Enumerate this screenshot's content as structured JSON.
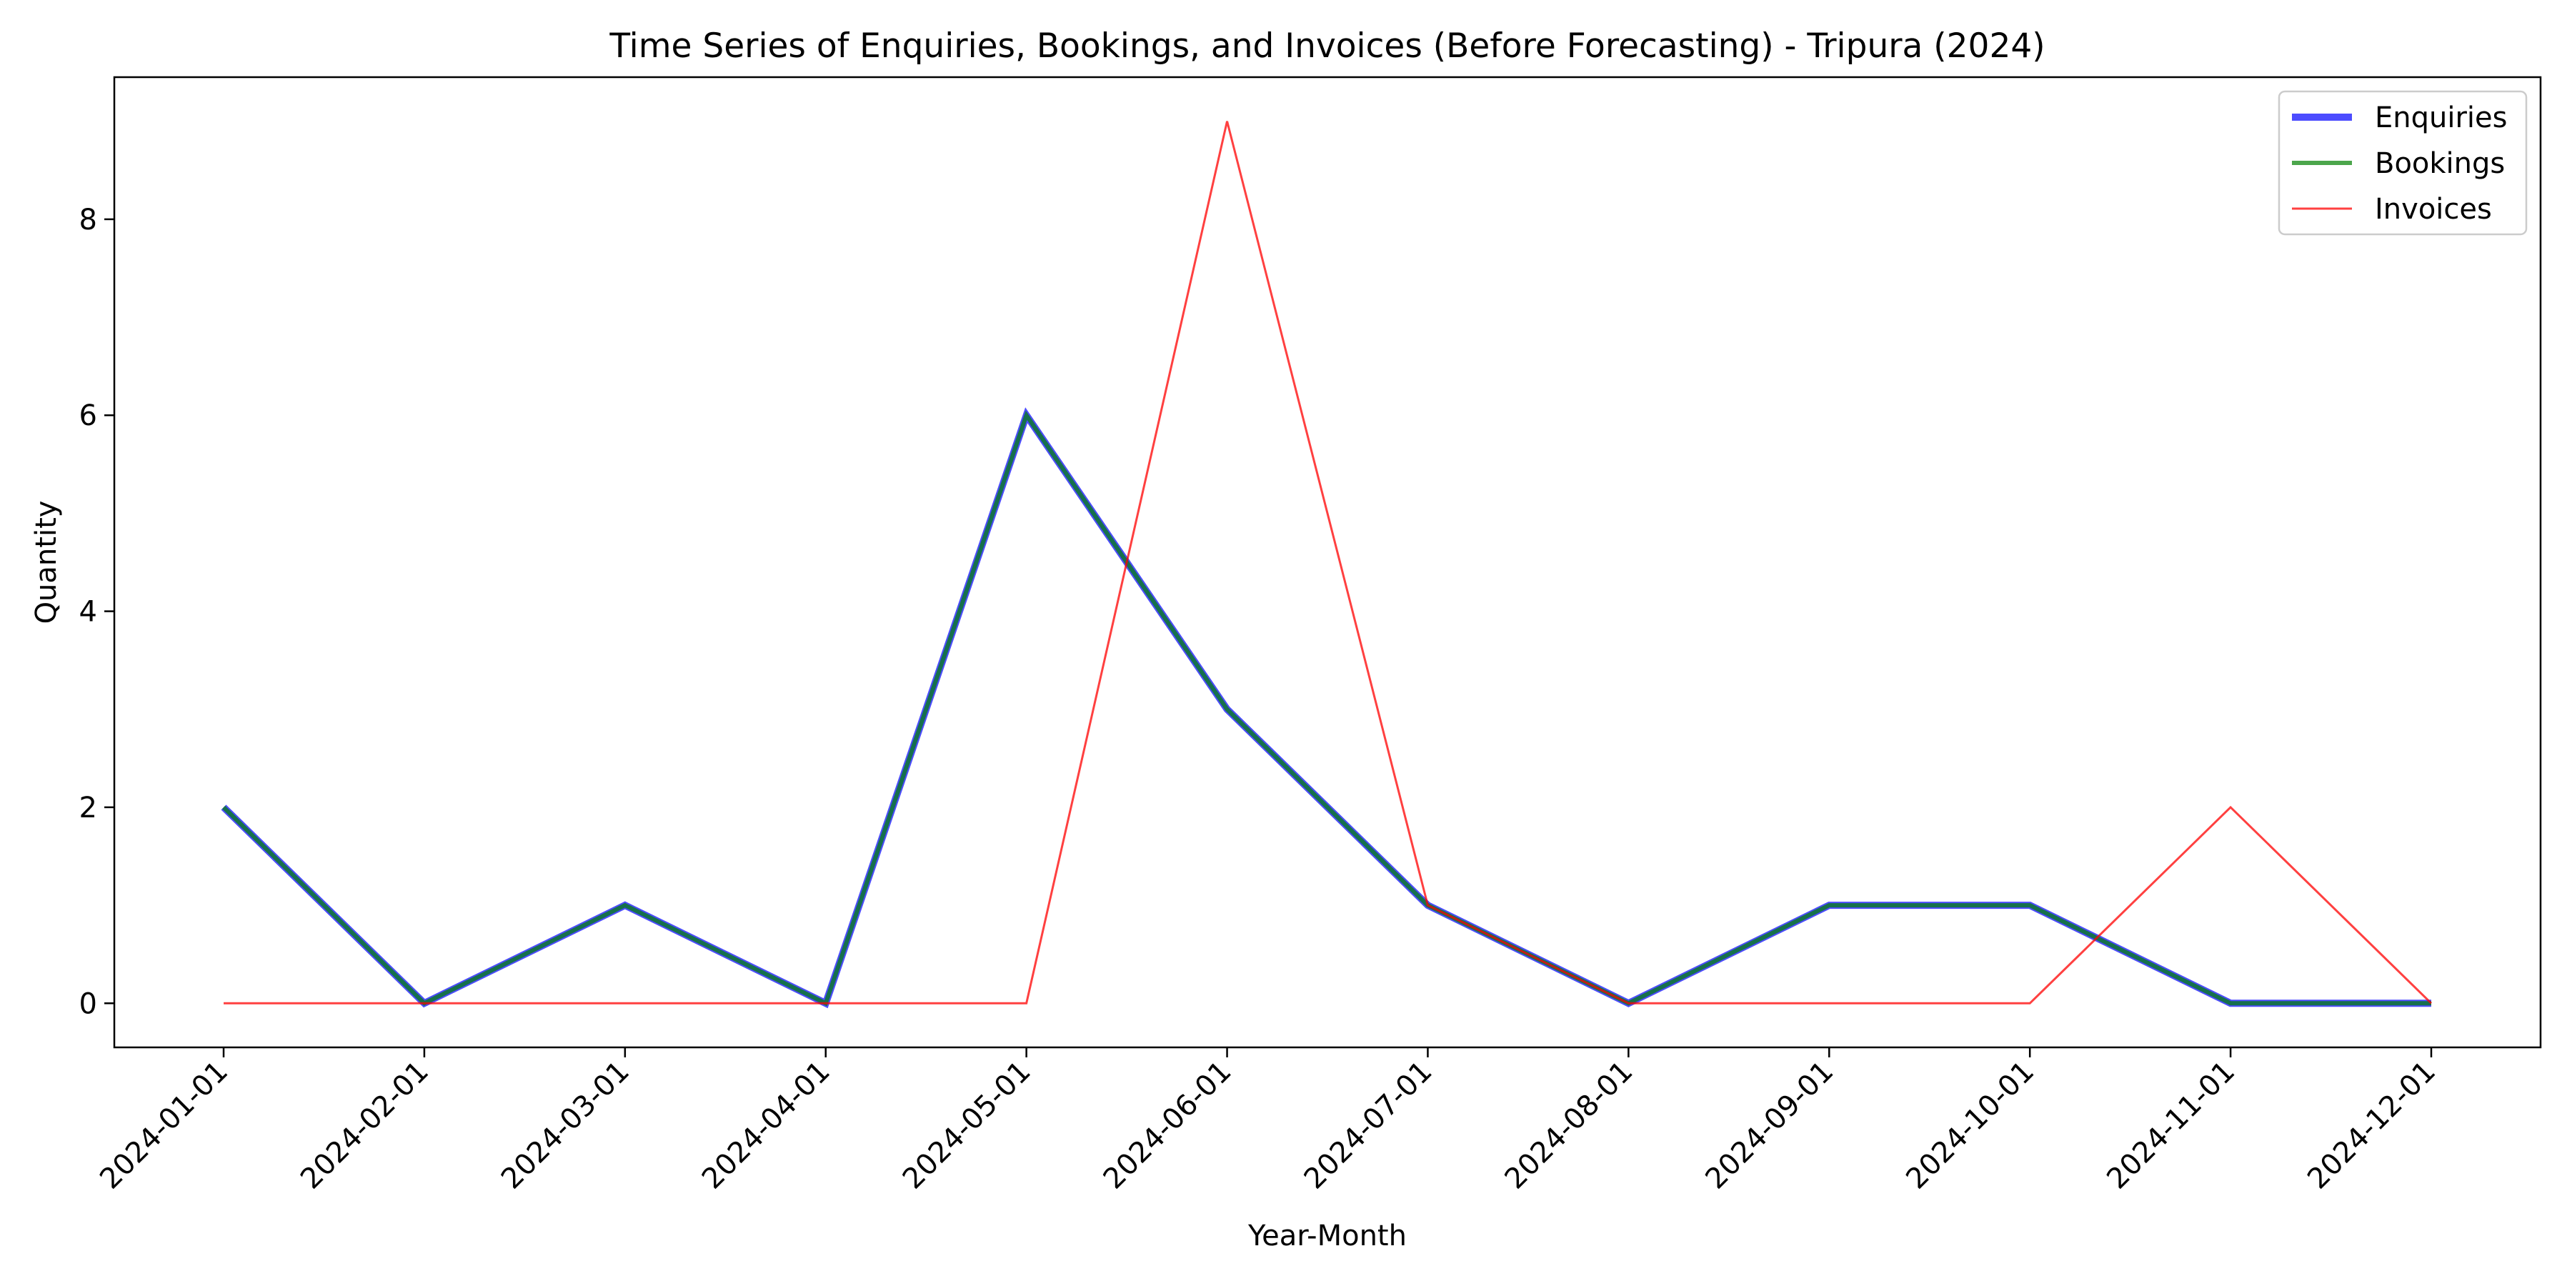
{
  "chart_data": {
    "type": "line",
    "title": "Time Series of Enquiries, Bookings, and Invoices (Before Forecasting) - Tripura (2024)",
    "xlabel": "Year-Month",
    "ylabel": "Quantity",
    "categories": [
      "2024-01-01",
      "2024-02-01",
      "2024-03-01",
      "2024-04-01",
      "2024-05-01",
      "2024-06-01",
      "2024-07-01",
      "2024-08-01",
      "2024-09-01",
      "2024-10-01",
      "2024-11-01",
      "2024-12-01"
    ],
    "ylim": [
      -0.45,
      9.45
    ],
    "yticks": [
      0,
      2,
      4,
      6,
      8
    ],
    "grid": false,
    "legend_position": "top-right",
    "series": [
      {
        "name": "Enquiries",
        "color": "#0000ff",
        "opacity": 0.7,
        "values": [
          2,
          0,
          1,
          0,
          6,
          3,
          1,
          0,
          1,
          1,
          0,
          0
        ]
      },
      {
        "name": "Bookings",
        "color": "#008000",
        "opacity": 0.7,
        "values": [
          2,
          0,
          1,
          0,
          6,
          3,
          1,
          0,
          1,
          1,
          0,
          0
        ]
      },
      {
        "name": "Invoices",
        "color": "#ff0000",
        "opacity": 0.75,
        "values": [
          0,
          0,
          0,
          0,
          0,
          9,
          1,
          0,
          0,
          0,
          2,
          0
        ]
      }
    ]
  }
}
